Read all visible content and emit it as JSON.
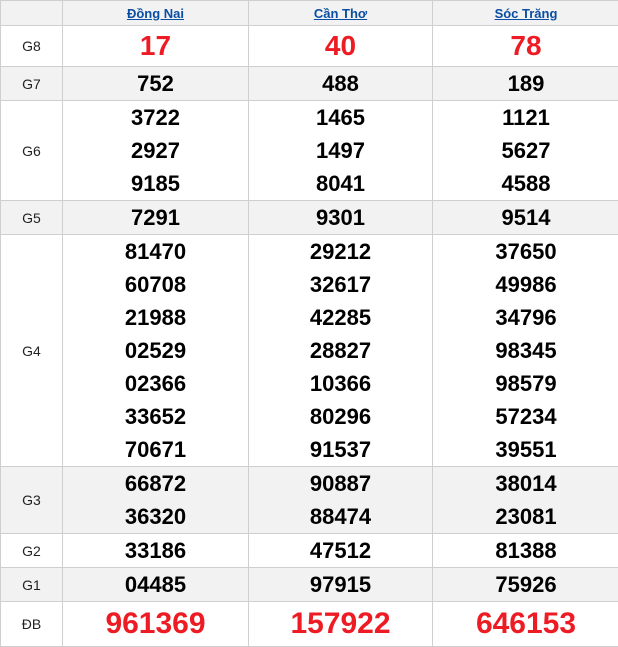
{
  "columns": [
    "Đồng Nai",
    "Cần Thơ",
    "Sóc Trăng"
  ],
  "prize_color": "#ed1c24",
  "rows": [
    {
      "label": "G8",
      "highlight": true,
      "values": [
        [
          "17"
        ],
        [
          "40"
        ],
        [
          "78"
        ]
      ]
    },
    {
      "label": "G7",
      "values": [
        [
          "752"
        ],
        [
          "488"
        ],
        [
          "189"
        ]
      ]
    },
    {
      "label": "G6",
      "values": [
        [
          "3722",
          "2927",
          "9185"
        ],
        [
          "1465",
          "1497",
          "8041"
        ],
        [
          "1121",
          "5627",
          "4588"
        ]
      ]
    },
    {
      "label": "G5",
      "values": [
        [
          "7291"
        ],
        [
          "9301"
        ],
        [
          "9514"
        ]
      ]
    },
    {
      "label": "G4",
      "values": [
        [
          "81470",
          "60708",
          "21988",
          "02529",
          "02366",
          "33652",
          "70671"
        ],
        [
          "29212",
          "32617",
          "42285",
          "28827",
          "10366",
          "80296",
          "91537"
        ],
        [
          "37650",
          "49986",
          "34796",
          "98345",
          "98579",
          "57234",
          "39551"
        ]
      ]
    },
    {
      "label": "G3",
      "values": [
        [
          "66872",
          "36320"
        ],
        [
          "90887",
          "88474"
        ],
        [
          "38014",
          "23081"
        ]
      ]
    },
    {
      "label": "G2",
      "values": [
        [
          "33186"
        ],
        [
          "47512"
        ],
        [
          "81388"
        ]
      ]
    },
    {
      "label": "G1",
      "values": [
        [
          "04485"
        ],
        [
          "97915"
        ],
        [
          "75926"
        ]
      ]
    },
    {
      "label": "ĐB",
      "highlight": true,
      "values": [
        [
          "961369"
        ],
        [
          "157922"
        ],
        [
          "646153"
        ]
      ]
    }
  ]
}
